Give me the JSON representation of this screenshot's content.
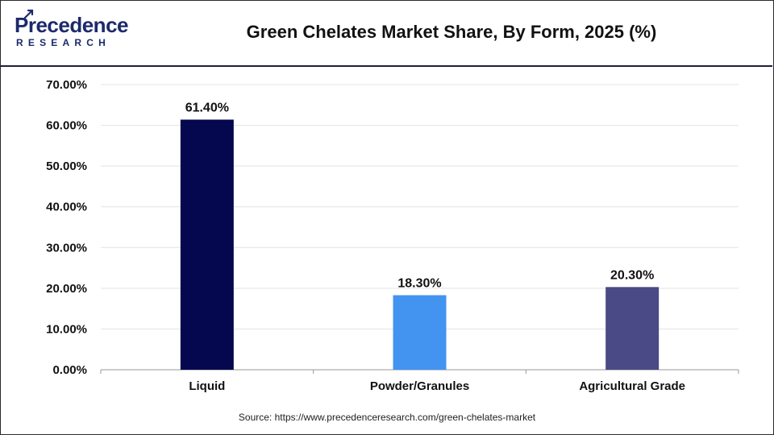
{
  "header": {
    "logo_main": "Precedence",
    "logo_sub": "RESEARCH",
    "title": "Green Chelates Market Share, By Form, 2025 (%)"
  },
  "source": "Source: https://www.precedenceresearch.com/green-chelates-market",
  "colors": {
    "bars": [
      "#05084f",
      "#4393f0",
      "#4a4a87"
    ],
    "grid": "#e3e3e3",
    "axis": "#9a9a9a",
    "brand": "#1c2a6b"
  },
  "chart_data": {
    "type": "bar",
    "title": "Green Chelates Market Share, By Form, 2025 (%)",
    "categories": [
      "Liquid",
      "Powder/Granules",
      "Agricultural Grade"
    ],
    "values": [
      61.4,
      18.3,
      20.3
    ],
    "data_labels": [
      "61.40%",
      "18.30%",
      "20.30%"
    ],
    "ylim": [
      0,
      70
    ],
    "yticks": [
      0,
      10,
      20,
      30,
      40,
      50,
      60,
      70
    ],
    "ytick_labels": [
      "0.00%",
      "10.00%",
      "20.00%",
      "30.00%",
      "40.00%",
      "50.00%",
      "60.00%",
      "70.00%"
    ],
    "grid": true,
    "xlabel": "",
    "ylabel": ""
  }
}
